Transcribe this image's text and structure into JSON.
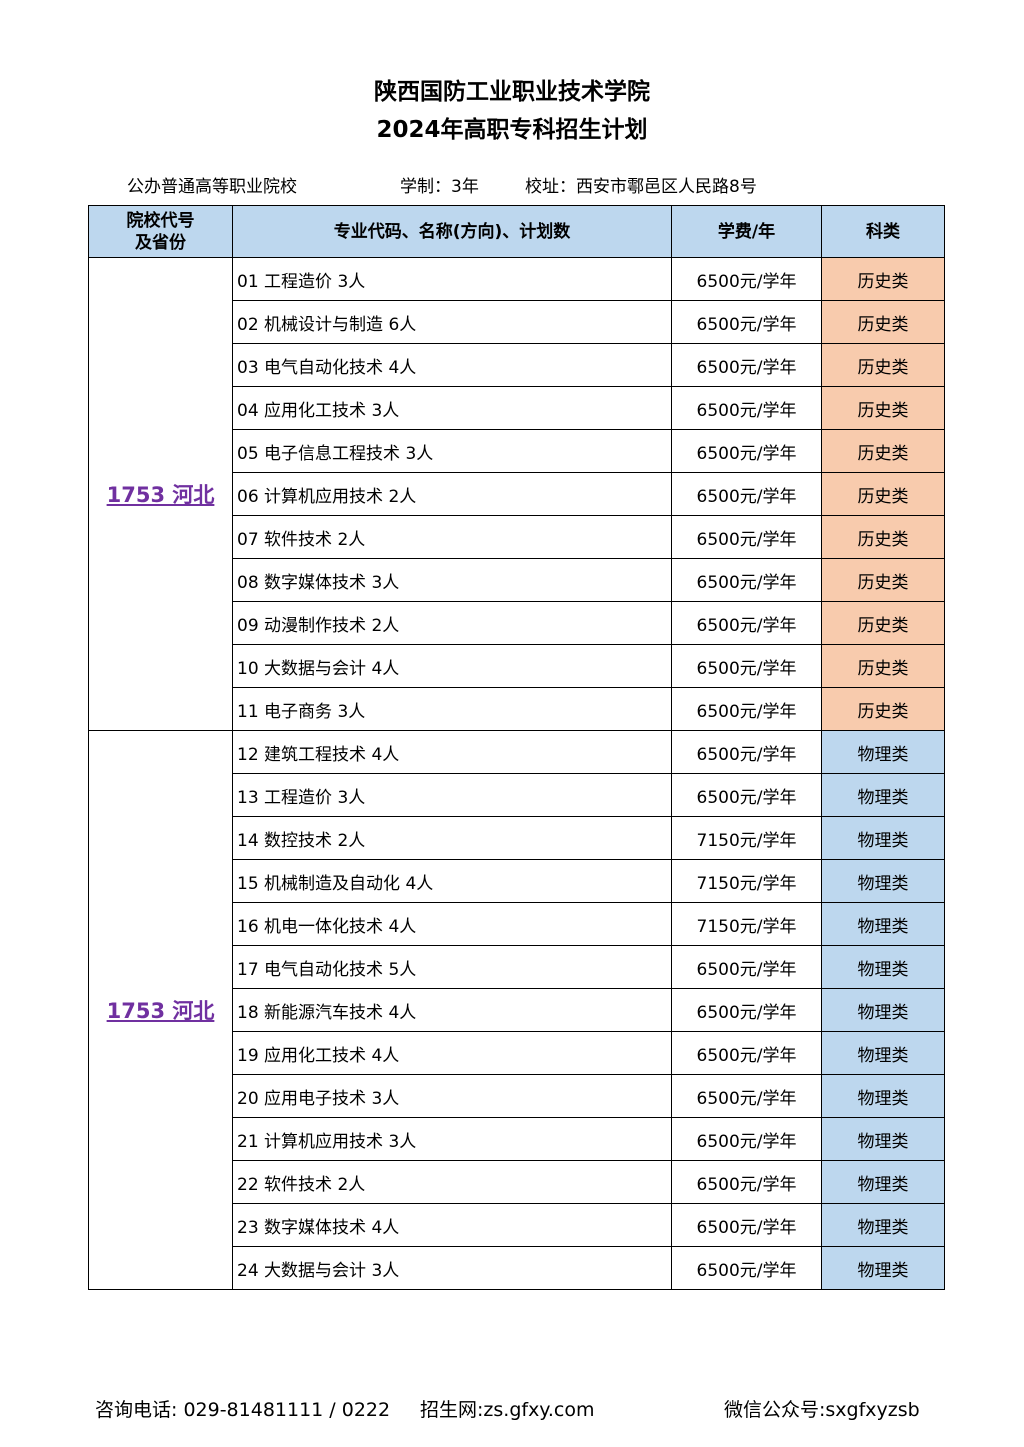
{
  "title_line1": "陕西国防工业职业技术学院",
  "title_line2": "2024年高职专科招生计划",
  "info": {
    "type": "公办普通高等职业院校",
    "duration": "学制：3年",
    "address": "校址：西安市鄠邑区人民路8号"
  },
  "headers": [
    "院校代号及省份",
    "专业代码、名称(方向)、计划数",
    "学费/年",
    "科类"
  ],
  "colors": {
    "header": "#BDD7EE",
    "history": "#F8CBAD",
    "physics": "#BDD7EE",
    "code": "#7030A0"
  },
  "groups": [
    {
      "code": "1753 河北",
      "category": "历史类",
      "rows": [
        [
          "01 工程造价 3人",
          "6500元/学年"
        ],
        [
          "02 机械设计与制造 6人",
          "6500元/学年"
        ],
        [
          "03 电气自动化技术 4人",
          "6500元/学年"
        ],
        [
          "04 应用化工技术 3人",
          "6500元/学年"
        ],
        [
          "05 电子信息工程技术 3人",
          "6500元/学年"
        ],
        [
          "06 计算机应用技术 2人",
          "6500元/学年"
        ],
        [
          "07 软件技术 2人",
          "6500元/学年"
        ],
        [
          "08 数字媒体技术 3人",
          "6500元/学年"
        ],
        [
          "09 动漫制作技术 2人",
          "6500元/学年"
        ],
        [
          "10 大数据与会计 4人",
          "6500元/学年"
        ],
        [
          "11 电子商务 3人",
          "6500元/学年"
        ]
      ]
    },
    {
      "code": "1753 河北",
      "category": "物理类",
      "rows": [
        [
          "12 建筑工程技术 4人",
          "6500元/学年"
        ],
        [
          "13 工程造价 3人",
          "6500元/学年"
        ],
        [
          "14 数控技术 2人",
          "7150元/学年"
        ],
        [
          "15 机械制造及自动化 4人",
          "7150元/学年"
        ],
        [
          "16 机电一体化技术 4人",
          "7150元/学年"
        ],
        [
          "17 电气自动化技术 5人",
          "6500元/学年"
        ],
        [
          "18 新能源汽车技术 4人",
          "6500元/学年"
        ],
        [
          "19 应用化工技术 4人",
          "6500元/学年"
        ],
        [
          "20 应用电子技术 3人",
          "6500元/学年"
        ],
        [
          "21 计算机应用技术 3人",
          "6500元/学年"
        ],
        [
          "22 软件技术 2人",
          "6500元/学年"
        ],
        [
          "23 数字媒体技术 4人",
          "6500元/学年"
        ],
        [
          "24 大数据与会计 3人",
          "6500元/学年"
        ]
      ]
    }
  ],
  "footer": {
    "phone": "咨询电话: 029-81481111 / 0222",
    "site": "招生网:zs.gfxy.com",
    "wechat": "微信公众号:sxgfxyzsb"
  }
}
